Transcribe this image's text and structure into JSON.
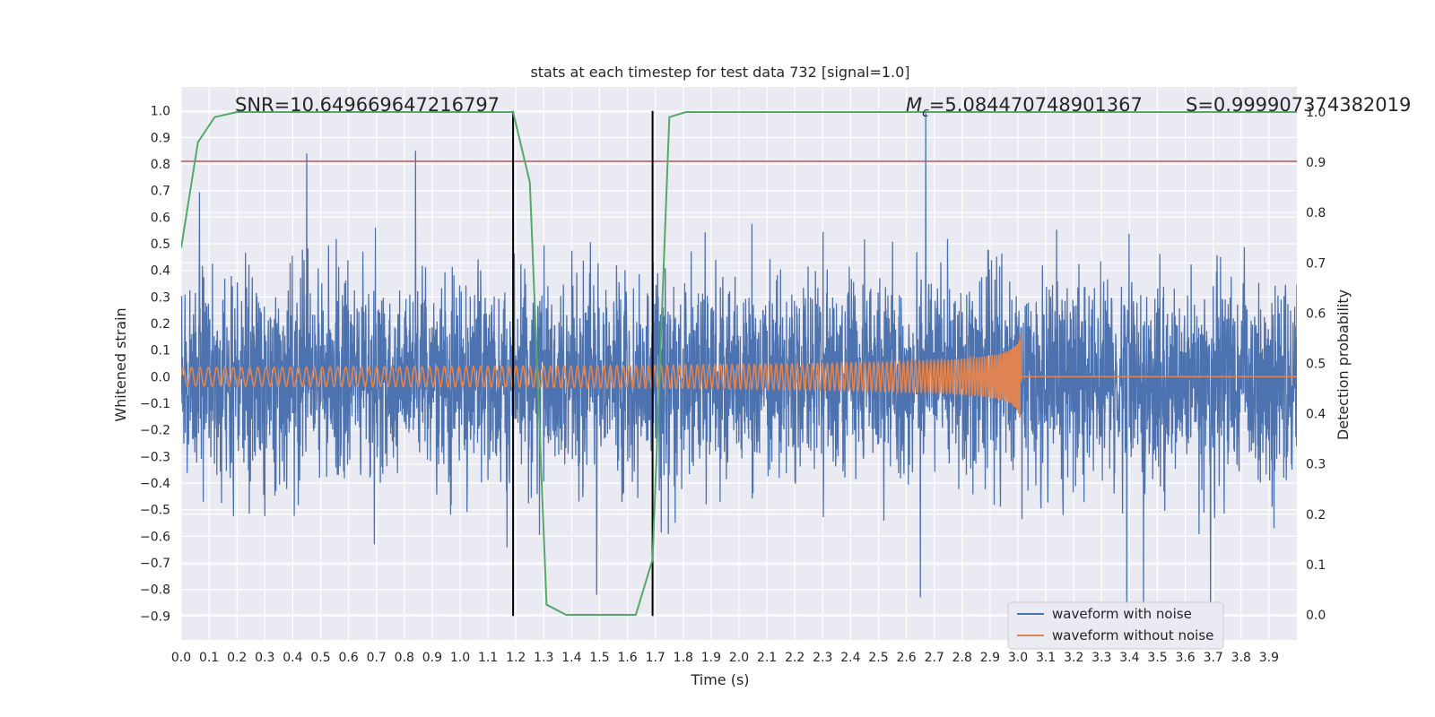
{
  "chart_data": {
    "type": "line",
    "title": "stats at each timestep for test data 732 [signal=1.0]",
    "xlabel": "Time (s)",
    "ylabel": "Whitened strain",
    "y2label": "Detection probability",
    "xlim": [
      0.0,
      4.0
    ],
    "ylim": [
      -0.99,
      1.09
    ],
    "y2lim": [
      -0.05,
      1.05
    ],
    "grid": true,
    "x_ticks": [
      "0.0",
      "0.1",
      "0.2",
      "0.3",
      "0.4",
      "0.5",
      "0.6",
      "0.7",
      "0.8",
      "0.9",
      "1.0",
      "1.1",
      "1.2",
      "1.3",
      "1.4",
      "1.5",
      "1.6",
      "1.7",
      "1.8",
      "1.9",
      "2.0",
      "2.1",
      "2.2",
      "2.3",
      "2.4",
      "2.5",
      "2.6",
      "2.7",
      "2.8",
      "2.9",
      "3.0",
      "3.1",
      "3.2",
      "3.3",
      "3.4",
      "3.5",
      "3.6",
      "3.7",
      "3.8",
      "3.9"
    ],
    "y_ticks": [
      "−0.9",
      "−0.8",
      "−0.7",
      "−0.6",
      "−0.5",
      "−0.4",
      "−0.3",
      "−0.2",
      "−0.1",
      "0.0",
      "0.1",
      "0.2",
      "0.3",
      "0.4",
      "0.5",
      "0.6",
      "0.7",
      "0.8",
      "0.9",
      "1.0"
    ],
    "y2_ticks": [
      "0.0",
      "0.1",
      "0.2",
      "0.3",
      "0.4",
      "0.5",
      "0.6",
      "0.7",
      "0.8",
      "0.9",
      "1.0"
    ],
    "annotations": {
      "snr": "SNR=10.649669647216797",
      "mc_symbol": "M",
      "mc_sub": "c",
      "mc_value": "=5.084470748901367",
      "s": "S=0.999907374382019"
    },
    "threshold_y": 0.81,
    "vlines_x": [
      1.19,
      1.69
    ],
    "vline_range": [
      -0.9,
      1.0
    ],
    "legend": {
      "placement": "lower-right",
      "entries": [
        "waveform with noise",
        "waveform without noise"
      ]
    },
    "series": [
      {
        "name": "waveform with noise",
        "color": "#4c72b0",
        "generated": "noise",
        "amplitude_std": 0.19,
        "samples": 4096,
        "spikes": [
          [
            0.45,
            0.84
          ],
          [
            0.84,
            0.85
          ],
          [
            2.67,
            1.0
          ],
          [
            3.39,
            -0.95
          ],
          [
            1.49,
            -0.82
          ],
          [
            2.65,
            -0.83
          ],
          [
            3.45,
            -0.9
          ],
          [
            3.69,
            -0.85
          ]
        ]
      },
      {
        "name": "waveform without noise",
        "color": "#dd8452",
        "generated": "chirp",
        "end_x": 3.01,
        "base_amplitude": 0.035,
        "peak_amplitude": 0.27
      },
      {
        "name": "detection probability",
        "color": "#55a868",
        "axis": "y2",
        "x": [
          0.0,
          0.06,
          0.12,
          0.2,
          0.3,
          0.4,
          0.5,
          0.6,
          0.7,
          0.8,
          0.9,
          1.0,
          1.1,
          1.19,
          1.25,
          1.31,
          1.38,
          1.44,
          1.5,
          1.56,
          1.63,
          1.69,
          1.75,
          1.81,
          1.9,
          2.0,
          2.2,
          2.4,
          2.6,
          2.8,
          3.0,
          3.2,
          3.4,
          3.6,
          3.8,
          4.0
        ],
        "y": [
          0.73,
          0.94,
          0.99,
          1.0,
          1.0,
          1.0,
          1.0,
          1.0,
          1.0,
          1.0,
          1.0,
          1.0,
          1.0,
          1.0,
          0.86,
          0.02,
          0.0,
          0.0,
          0.0,
          0.0,
          0.0,
          0.11,
          0.99,
          1.0,
          1.0,
          1.0,
          1.0,
          1.0,
          1.0,
          1.0,
          1.0,
          1.0,
          1.0,
          1.0,
          1.0,
          1.0
        ]
      }
    ],
    "colors": {
      "background": "#eaeaf2",
      "grid": "#ffffff",
      "threshold": "#c44e52",
      "vline": "#000000"
    }
  }
}
